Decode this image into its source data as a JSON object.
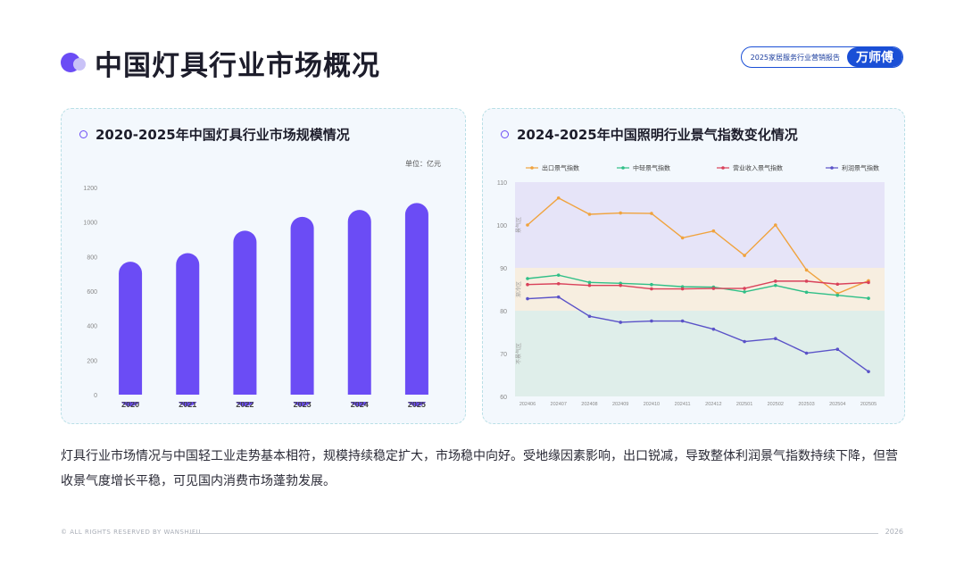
{
  "page": {
    "title": "中国灯具行业市场概况",
    "brand_report": "2025家居服务行业营销报告",
    "brand_logo": "万师傅",
    "body_text": "灯具行业市场情况与中国轻工业走势基本相符，规模持续稳定扩大，市场稳中向好。受地缘因素影响，出口锐减，导致整体利润景气指数持续下降，但营收景气度增长平稳，可见国内消费市场蓬勃发展。",
    "footer_left": "© ALL RIGHTS RESERVED BY WANSHIFU",
    "footer_right": "2026"
  },
  "chart_data": [
    {
      "type": "bar",
      "title": "2020-2025年中国灯具行业市场规模情况",
      "unit_label": "单位：亿元",
      "categories": [
        "2020",
        "2021",
        "2022",
        "2023",
        "2024",
        "2025"
      ],
      "values": [
        770,
        820,
        950,
        1030,
        1070,
        1110
      ],
      "ylim": [
        0,
        1200
      ],
      "yticks": [
        "0",
        "200",
        "400",
        "600",
        "800",
        "1000",
        "1200"
      ],
      "color": "#6b4cf5"
    },
    {
      "type": "line",
      "title": "2024-2025年中国照明行业景气指数变化情况",
      "x": [
        "202406",
        "202407",
        "202408",
        "202409",
        "202410",
        "202411",
        "202412",
        "202501",
        "202502",
        "202503",
        "202504",
        "202505"
      ],
      "ylim": [
        60,
        110
      ],
      "yticks": [
        "60",
        "70",
        "80",
        "90",
        "100",
        "110"
      ],
      "zones": [
        {
          "label": "景气区",
          "from": 90,
          "to": 110,
          "color": "#e6e4f8"
        },
        {
          "label": "渐冷区",
          "from": 80,
          "to": 90,
          "color": "#f7eee0"
        },
        {
          "label": "不景气区",
          "from": 60,
          "to": 80,
          "color": "#dfeeea"
        }
      ],
      "series": [
        {
          "name": "出口景气指数",
          "color": "#f0a33e",
          "values": [
            100.0,
            106.3,
            102.5,
            102.8,
            102.7,
            97.0,
            98.6,
            92.9,
            100.0,
            89.5,
            84.0,
            87.0
          ]
        },
        {
          "name": "中轻景气指数",
          "color": "#2fbf87",
          "values": [
            87.5,
            88.3,
            86.6,
            86.4,
            86.1,
            85.6,
            85.5,
            84.4,
            85.9,
            84.3,
            83.6,
            82.9
          ]
        },
        {
          "name": "营业收入景气指数",
          "color": "#d9415a",
          "values": [
            86.1,
            86.3,
            85.9,
            85.9,
            85.1,
            85.1,
            85.2,
            85.2,
            86.9,
            86.9,
            86.2,
            86.6
          ]
        },
        {
          "name": "利润景气指数",
          "color": "#5a52c8",
          "values": [
            82.8,
            83.2,
            78.7,
            77.3,
            77.6,
            77.6,
            75.7,
            72.8,
            73.5,
            70.1,
            71.0,
            65.8
          ]
        }
      ]
    }
  ]
}
